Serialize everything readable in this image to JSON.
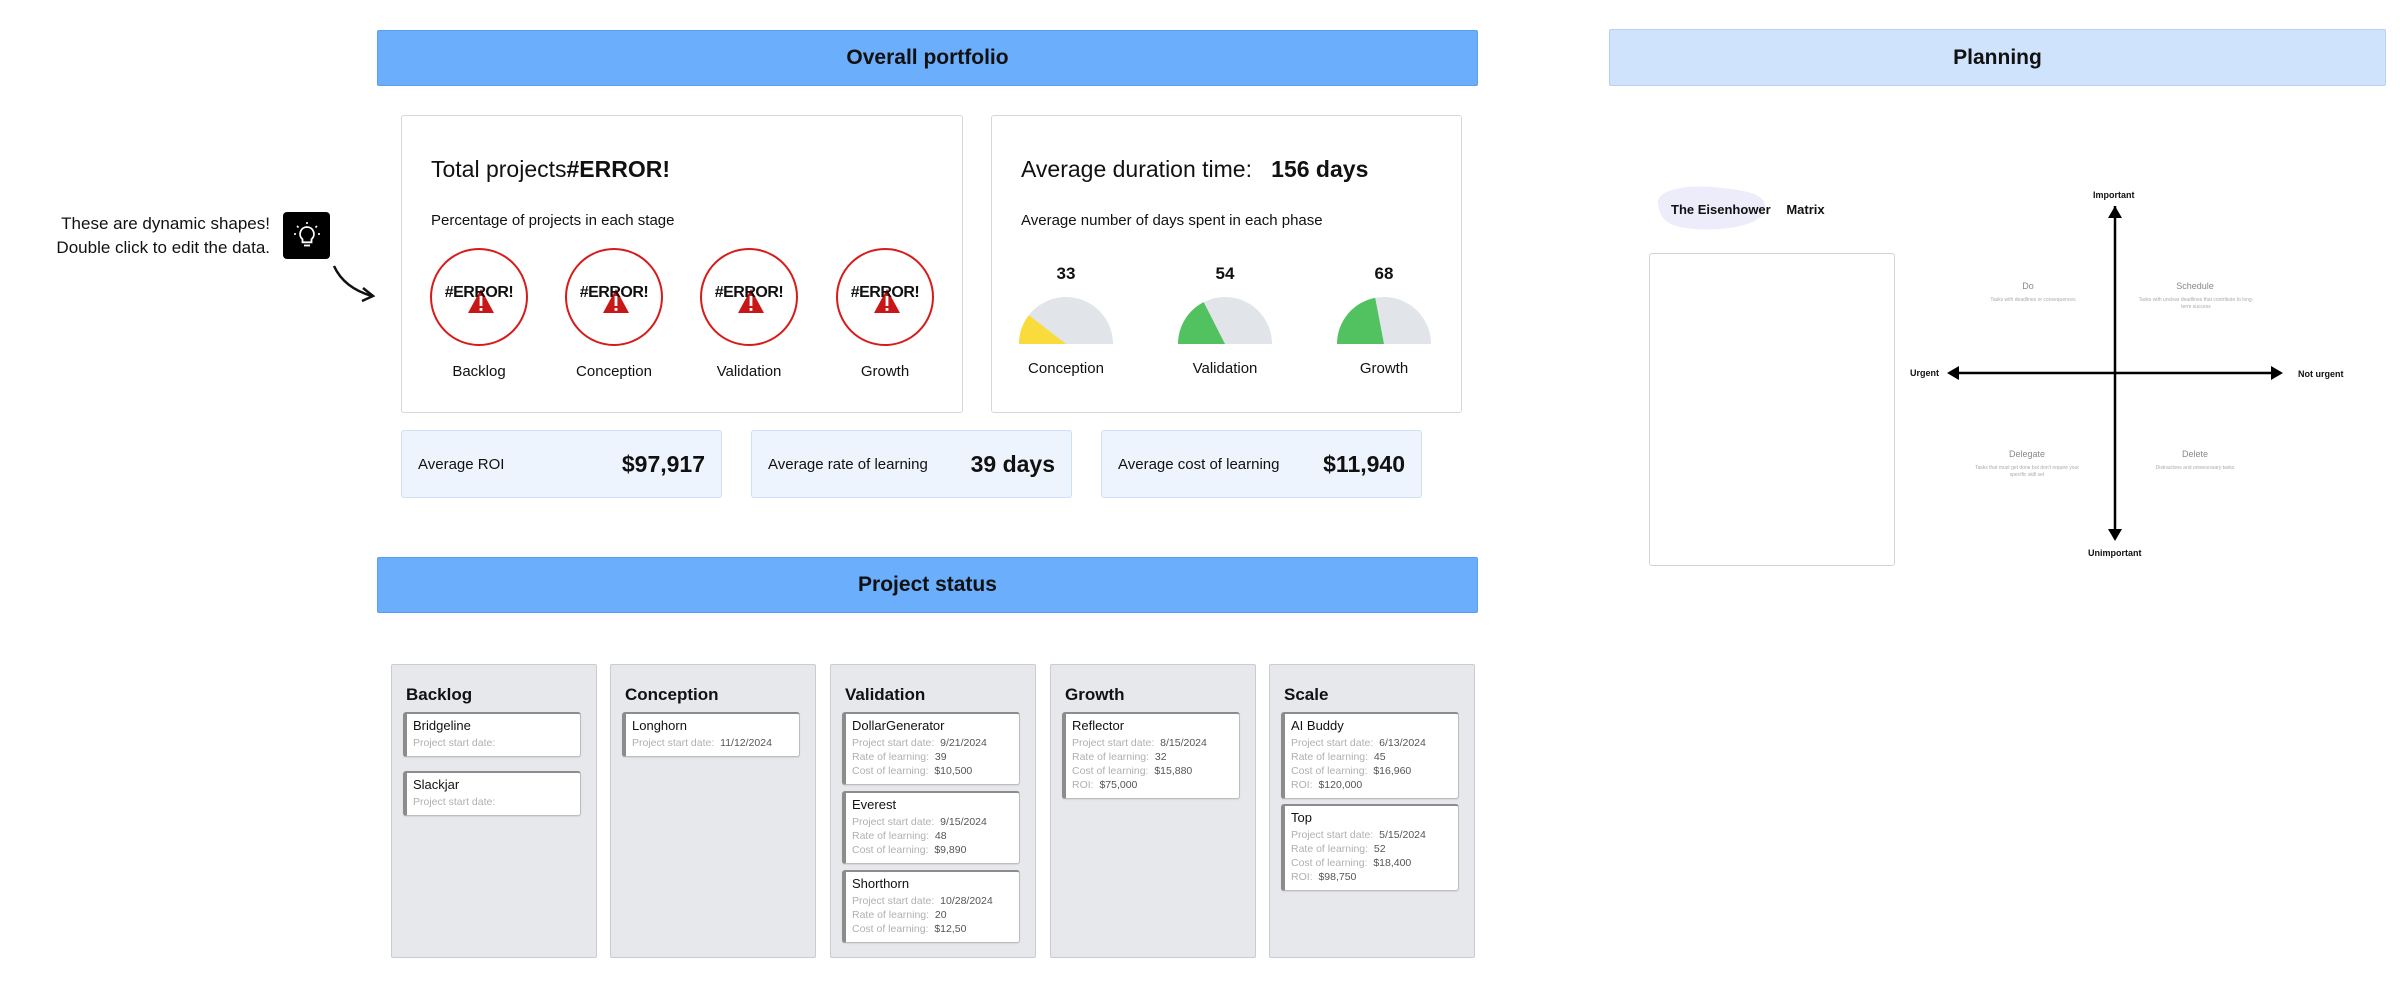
{
  "hint": {
    "line1": "These are dynamic shapes!",
    "line2": "Double click to edit the data.",
    "icon": "lightbulb-icon"
  },
  "portfolio": {
    "header": "Overall portfolio",
    "total": {
      "label": "Total projects",
      "value": "#ERROR!",
      "subtitle": "Percentage of projects in each stage",
      "stages": [
        {
          "value": "#ERROR!",
          "label": "Backlog"
        },
        {
          "value": "#ERROR!",
          "label": "Conception"
        },
        {
          "value": "#ERROR!",
          "label": "Validation"
        },
        {
          "value": "#ERROR!",
          "label": "Growth"
        }
      ]
    },
    "duration": {
      "label": "Average duration time:",
      "value": "156 days",
      "subtitle": "Average number of days spent in each phase",
      "gauges": [
        {
          "value": "33",
          "label": "Conception",
          "fraction": 0.21,
          "color": "#f9dc3c"
        },
        {
          "value": "54",
          "label": "Validation",
          "fraction": 0.35,
          "color": "#52c15f"
        },
        {
          "value": "68",
          "label": "Growth",
          "fraction": 0.44,
          "color": "#52c15f"
        }
      ]
    },
    "metrics": [
      {
        "label": "Average ROI",
        "value": "$97,917"
      },
      {
        "label": "Average rate of learning",
        "value": "39 days"
      },
      {
        "label": "Average cost of learning",
        "value": "$11,940"
      }
    ]
  },
  "status": {
    "header": "Project status",
    "columns": [
      {
        "title": "Backlog",
        "cards": [
          {
            "name": "Bridgeline",
            "rows": [
              {
                "k": "Project start date:",
                "v": ""
              }
            ]
          },
          {
            "name": "Slackjar",
            "rows": [
              {
                "k": "Project start date:",
                "v": ""
              }
            ]
          }
        ]
      },
      {
        "title": "Conception",
        "cards": [
          {
            "name": "Longhorn",
            "rows": [
              {
                "k": "Project start date:",
                "v": "11/12/2024"
              }
            ]
          }
        ]
      },
      {
        "title": "Validation",
        "cards": [
          {
            "name": "DollarGenerator",
            "rows": [
              {
                "k": "Project start date:",
                "v": "9/21/2024"
              },
              {
                "k": "Rate of learning:",
                "v": "39"
              },
              {
                "k": "Cost of learning:",
                "v": "$10,500"
              }
            ]
          },
          {
            "name": "Everest",
            "rows": [
              {
                "k": "Project start date:",
                "v": "9/15/2024"
              },
              {
                "k": "Rate of learning:",
                "v": "48"
              },
              {
                "k": "Cost of learning:",
                "v": "$9,890"
              }
            ]
          },
          {
            "name": "Shorthorn",
            "rows": [
              {
                "k": "Project start date:",
                "v": "10/28/2024"
              },
              {
                "k": "Rate of learning:",
                "v": "20"
              },
              {
                "k": "Cost of learning:",
                "v": "$12,50"
              }
            ]
          }
        ]
      },
      {
        "title": "Growth",
        "cards": [
          {
            "name": "Reflector",
            "rows": [
              {
                "k": "Project start date:",
                "v": "8/15/2024"
              },
              {
                "k": "Rate of learning:",
                "v": "32"
              },
              {
                "k": "Cost of learning:",
                "v": "$15,880"
              },
              {
                "k": "ROI:",
                "v": "$75,000"
              }
            ]
          }
        ]
      },
      {
        "title": "Scale",
        "cards": [
          {
            "name": "AI Buddy",
            "rows": [
              {
                "k": "Project start date:",
                "v": "6/13/2024"
              },
              {
                "k": "Rate of learning:",
                "v": "45"
              },
              {
                "k": "Cost of learning:",
                "v": "$16,960"
              },
              {
                "k": "ROI:",
                "v": "$120,000"
              }
            ]
          },
          {
            "name": "Top",
            "rows": [
              {
                "k": "Project start date:",
                "v": "5/15/2024"
              },
              {
                "k": "Rate of learning:",
                "v": "52"
              },
              {
                "k": "Cost of learning:",
                "v": "$18,400"
              },
              {
                "k": "ROI:",
                "v": "$98,750"
              }
            ]
          }
        ]
      }
    ]
  },
  "planning": {
    "header": "Planning",
    "matrix_title_1": "The",
    "matrix_title_2": "Eisenhower",
    "matrix_title_3": "Matrix",
    "axes": {
      "top": "Important",
      "bottom": "Unimportant",
      "left": "Urgent",
      "right": "Not urgent"
    },
    "quadrants": [
      {
        "title": "Do",
        "sub": "Tasks with deadlines or consequences"
      },
      {
        "title": "Schedule",
        "sub": "Tasks with unclear deadlines that contribute to long-term success"
      },
      {
        "title": "Delegate",
        "sub": "Tasks that must get done but don't require your specific skill set"
      },
      {
        "title": "Delete",
        "sub": "Distractions and unnecessary tasks"
      }
    ]
  }
}
